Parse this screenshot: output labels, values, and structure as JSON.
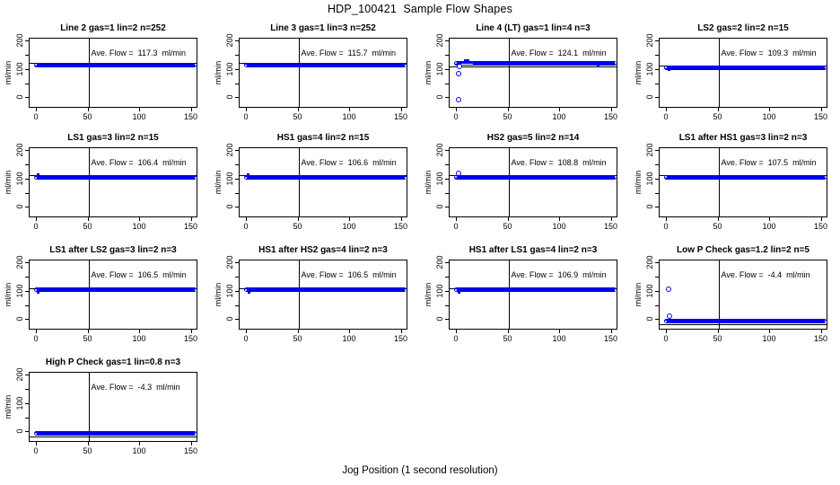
{
  "page": {
    "title": "HDP_100421  Sample Flow Shapes",
    "xlabel": "Jog Position (1 second resolution)"
  },
  "chart_data": {
    "type": "scatter",
    "title": "HDP_100421  Sample Flow Shapes",
    "xlabel": "Jog Position (1 second resolution)",
    "ylabel": "ml/min",
    "layout": {
      "rows": 4,
      "cols": 4,
      "xlim": [
        -7,
        156.5
      ],
      "ylim": [
        -37,
        210
      ],
      "x_ticks": [
        0,
        50,
        100,
        150
      ],
      "y_ticks": [
        0,
        50,
        100,
        150,
        200
      ],
      "y_labeled_ticks": [
        0,
        100,
        200
      ],
      "vline_x": 50,
      "point_color": "#0101EE",
      "grid": false,
      "legend": "none"
    },
    "panels": [
      {
        "title": "Line 2 gas=1 lin=2 n=252",
        "ave_flow": 117.3,
        "ave_label": "Ave. Flow =  117.3  ml/min",
        "band": {
          "x0": 0,
          "x1": 152,
          "center": 117.3
        },
        "refline": 125,
        "outliers": []
      },
      {
        "title": "Line 3 gas=1 lin=3 n=252",
        "ave_flow": 115.7,
        "ave_label": "Ave. Flow =  115.7  ml/min",
        "band": {
          "x0": 0,
          "x1": 152,
          "center": 115.7
        },
        "refline": 123,
        "outliers": []
      },
      {
        "title": "Line 4 (LT) gas=1 lin=4 n=3",
        "ave_flow": 124.1,
        "ave_label": "Ave. Flow =  124.1  ml/min",
        "band": {
          "x0": 0,
          "x1": 152,
          "center": 124.5
        },
        "refline": 112,
        "outliers": [
          {
            "x": 2,
            "y": -5,
            "m": "o"
          },
          {
            "x": 2,
            "y": 85,
            "m": "o"
          },
          {
            "x": 3,
            "y": 112,
            "m": "o"
          },
          {
            "x": 8,
            "y": 131,
            "m": "s"
          },
          {
            "x": 11,
            "y": 132,
            "m": "s"
          },
          {
            "x": 137,
            "y": 115,
            "m": "s"
          }
        ],
        "band_gap": {
          "x0": 4,
          "x1": 16,
          "y": 120
        }
      },
      {
        "title": "LS2 gas=2 lin=2 n=15",
        "ave_flow": 109.3,
        "ave_label": "Ave. Flow =  109.3  ml/min",
        "band": {
          "x0": 0,
          "x1": 152,
          "center": 108.5
        },
        "refline": 115,
        "outliers": [
          {
            "x": 2,
            "y": 100,
            "m": "s"
          }
        ]
      },
      {
        "title": "LS1 gas=3 lin=2 n=15",
        "ave_flow": 106.4,
        "ave_label": "Ave. Flow =  106.4  ml/min",
        "band": {
          "x0": 0,
          "x1": 152,
          "center": 106.4
        },
        "refline": 114,
        "outliers": [
          {
            "x": 1,
            "y": 116,
            "m": "s"
          }
        ]
      },
      {
        "title": "HS1 gas=4 lin=2 n=15",
        "ave_flow": 106.6,
        "ave_label": "Ave. Flow =  106.6  ml/min",
        "band": {
          "x0": 0,
          "x1": 152,
          "center": 106.6
        },
        "refline": 114,
        "outliers": [
          {
            "x": 1,
            "y": 116,
            "m": "s"
          }
        ]
      },
      {
        "title": "HS2 gas=5 lin=2 n=14",
        "ave_flow": 108.8,
        "ave_label": "Ave. Flow =  108.8  ml/min",
        "band": {
          "x0": 0,
          "x1": 152,
          "center": 108.5
        },
        "refline": 115,
        "outliers": [
          {
            "x": 2,
            "y": 121,
            "m": "o"
          }
        ]
      },
      {
        "title": "LS1 after HS1 gas=3 lin=2 n=3",
        "ave_flow": 107.5,
        "ave_label": "Ave. Flow =  107.5  ml/min",
        "band": {
          "x0": 0,
          "x1": 152,
          "center": 107.5
        },
        "refline": 114,
        "outliers": []
      },
      {
        "title": "LS1 after LS2 gas=3 lin=2 n=3",
        "ave_flow": 106.5,
        "ave_label": "Ave. Flow =  106.5  ml/min",
        "band": {
          "x0": 0,
          "x1": 152,
          "center": 106.5
        },
        "refline": 113,
        "outliers": [
          {
            "x": 1,
            "y": 99,
            "m": "s"
          }
        ]
      },
      {
        "title": "HS1 after HS2 gas=4 lin=2 n=3",
        "ave_flow": 106.5,
        "ave_label": "Ave. Flow =  106.5  ml/min",
        "band": {
          "x0": 0,
          "x1": 152,
          "center": 106.5
        },
        "refline": 113,
        "outliers": [
          {
            "x": 2,
            "y": 98,
            "m": "s"
          }
        ]
      },
      {
        "title": "HS1 after LS1 gas=4 lin=2 n=3",
        "ave_flow": 106.9,
        "ave_label": "Ave. Flow =  106.9  ml/min",
        "band": {
          "x0": 0,
          "x1": 152,
          "center": 106.9
        },
        "refline": 113,
        "outliers": [
          {
            "x": 2,
            "y": 97,
            "m": "s"
          }
        ]
      },
      {
        "title": "Low P Check gas=1.2 lin=2 n=5",
        "ave_flow": -4.4,
        "ave_label": "Ave. Flow =  -4.4  ml/min",
        "band": {
          "x0": 0,
          "x1": 152,
          "center": -4.4
        },
        "refline": -15,
        "outliers": [
          {
            "x": 2,
            "y": 110,
            "m": "o"
          },
          {
            "x": 3,
            "y": 15,
            "m": "o"
          }
        ]
      },
      {
        "title": "High P Check gas=1 lin=0.8 n=3",
        "ave_flow": -4.3,
        "ave_label": "Ave. Flow =  -4.3  ml/min",
        "band": {
          "x0": 0,
          "x1": 152,
          "center": -4.3
        },
        "refline": -15,
        "outliers": []
      }
    ]
  }
}
